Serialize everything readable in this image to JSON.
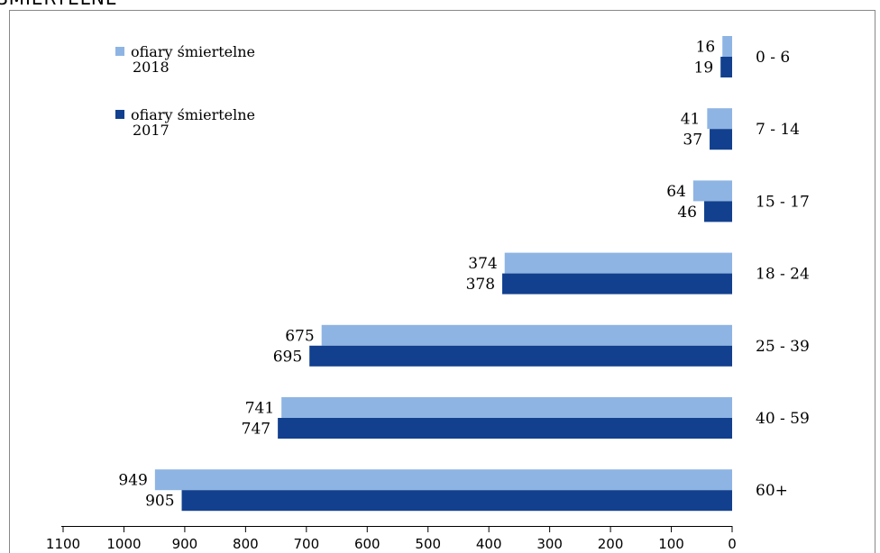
{
  "header": {
    "title_fragment": "ŚMIERTELNE"
  },
  "chart_data": {
    "type": "bar",
    "orientation": "horizontal",
    "direction": "right-to-left",
    "categories": [
      "0 - 6",
      "7 - 14",
      "15 - 17",
      "18 - 24",
      "25 - 39",
      "40 - 59",
      "60+"
    ],
    "series": [
      {
        "name": "ofiary śmiertelne 2018",
        "values": [
          16,
          41,
          64,
          374,
          675,
          741,
          949
        ],
        "color": "#8EB4E3"
      },
      {
        "name": "ofiary śmiertelne 2017",
        "values": [
          19,
          37,
          46,
          378,
          695,
          747,
          905
        ],
        "color": "#12408E"
      }
    ],
    "xlim": [
      0,
      1100
    ],
    "xticks": [
      "1100",
      "1000",
      "900",
      "800",
      "700",
      "600",
      "500",
      "400",
      "300",
      "200",
      "100",
      "0"
    ],
    "legend_position": "top-left",
    "grid": false
  }
}
